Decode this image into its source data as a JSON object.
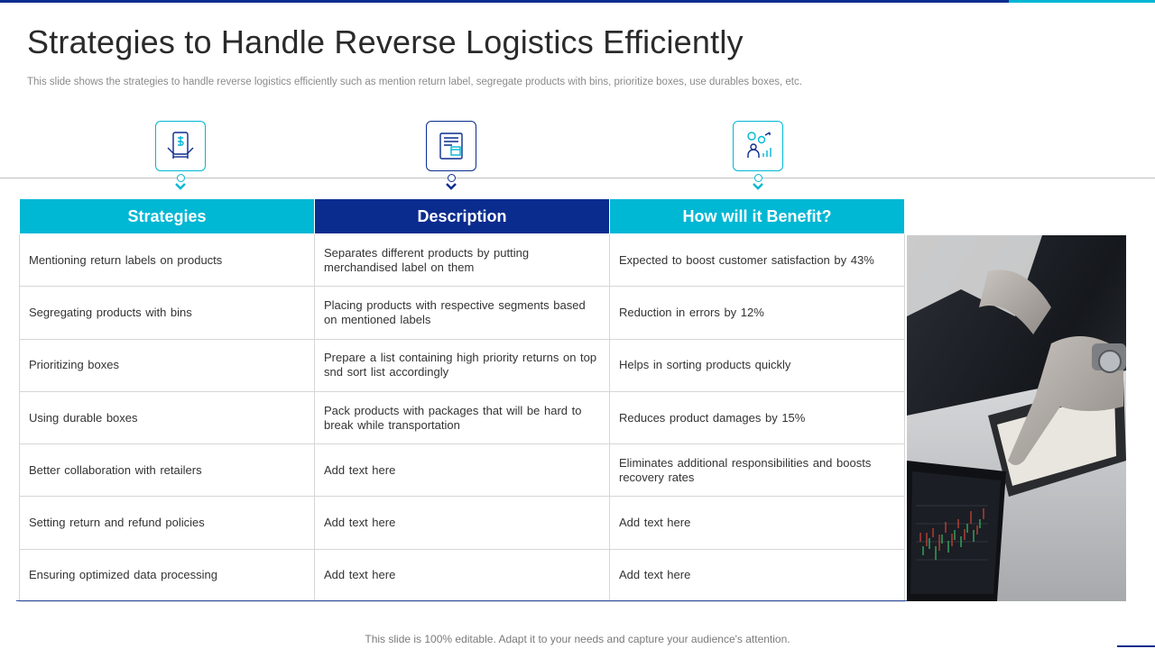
{
  "slide": {
    "title": "Strategies to Handle Reverse Logistics Efficiently",
    "subtitle": "This slide shows the strategies to handle reverse logistics efficiently such as mention return label, segregate products with bins, prioritize boxes, use durables boxes, etc.",
    "footer": "This slide is 100% editable. Adapt it to your needs and capture your audience's attention."
  },
  "colors": {
    "cyan": "#00b7d4",
    "navy": "#0a2c8f"
  },
  "icons": [
    "tablet-finance-icon",
    "document-box-icon",
    "people-growth-icon"
  ],
  "table": {
    "headers": [
      "Strategies",
      "Description",
      "How will it Benefit?"
    ],
    "rows": [
      [
        "Mentioning return labels on products",
        "Separates different products by putting merchandised label on them",
        "Expected to boost customer satisfaction by 43%"
      ],
      [
        "Segregating products with bins",
        "Placing products with respective segments based on mentioned labels",
        "Reduction in errors by 12%"
      ],
      [
        "Prioritizing boxes",
        "Prepare a list containing high priority returns on top snd sort list accordingly",
        "Helps in sorting products quickly"
      ],
      [
        "Using durable boxes",
        "Pack products with packages that will be hard to break while transportation",
        "Reduces product damages by 15%"
      ],
      [
        "Better collaboration with retailers",
        "Add text here",
        "Eliminates additional responsibilities and boosts recovery rates"
      ],
      [
        "Setting return and refund policies",
        "Add text here",
        "Add text here"
      ],
      [
        "Ensuring optimized data processing",
        "Add text here",
        "Add text here"
      ]
    ]
  }
}
